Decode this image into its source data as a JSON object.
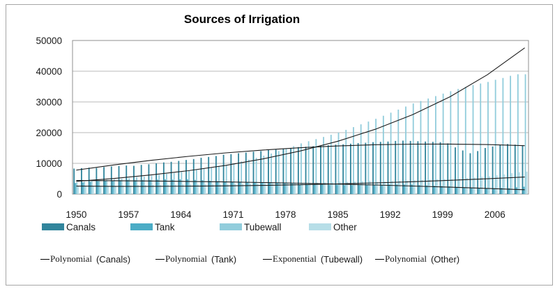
{
  "chart_data": {
    "type": "bar",
    "title": "Sources of Irrigation",
    "x": [
      1950,
      1951,
      1952,
      1953,
      1954,
      1955,
      1956,
      1957,
      1958,
      1959,
      1960,
      1961,
      1962,
      1963,
      1964,
      1965,
      1966,
      1967,
      1968,
      1969,
      1970,
      1971,
      1972,
      1973,
      1974,
      1975,
      1976,
      1977,
      1978,
      1979,
      1980,
      1981,
      1982,
      1983,
      1984,
      1985,
      1986,
      1987,
      1988,
      1989,
      1990,
      1991,
      1992,
      1993,
      1994,
      1995,
      1996,
      1997,
      1998,
      1999,
      2000,
      2001,
      2002,
      2003,
      2004,
      2005,
      2006,
      2007,
      2008,
      2009,
      2010
    ],
    "x_tick_labels": [
      "1950",
      "1957",
      "1964",
      "1971",
      "1978",
      "1985",
      "1992",
      "1999",
      "2006"
    ],
    "ylim": [
      0,
      50000
    ],
    "y_ticks": [
      0,
      10000,
      20000,
      30000,
      40000,
      50000
    ],
    "grid": true,
    "legend_position": "bottom",
    "series": [
      {
        "name": "Canals",
        "color": "#31859c",
        "values": [
          8300,
          8450,
          8600,
          8500,
          8800,
          9000,
          9150,
          9300,
          9200,
          9500,
          9700,
          10000,
          10300,
          10500,
          10800,
          11100,
          11400,
          11800,
          12100,
          12400,
          12800,
          13000,
          13300,
          13500,
          13800,
          14000,
          14300,
          14500,
          14800,
          15000,
          15300,
          15400,
          15600,
          15700,
          15900,
          16100,
          16200,
          16400,
          16600,
          16700,
          16900,
          17000,
          17100,
          17300,
          17400,
          17300,
          17200,
          17100,
          17000,
          16900,
          16500,
          15200,
          14200,
          13300,
          14000,
          15000,
          15500,
          16000,
          16300,
          16100,
          15800
        ]
      },
      {
        "name": "Tank",
        "color": "#4bacc6",
        "values": [
          3600,
          3800,
          4000,
          4200,
          4300,
          4400,
          4500,
          4600,
          4500,
          4600,
          4600,
          4700,
          4800,
          4700,
          4800,
          4800,
          4600,
          4500,
          4300,
          4200,
          4100,
          4000,
          4000,
          3900,
          3900,
          3900,
          3800,
          3700,
          3500,
          3400,
          3200,
          3200,
          3100,
          3100,
          3000,
          3000,
          2900,
          2900,
          2900,
          2900,
          2900,
          3000,
          3100,
          3100,
          3100,
          3100,
          2900,
          2800,
          2700,
          2600,
          2500,
          2300,
          2100,
          1900,
          1800,
          1800,
          1900,
          2000,
          1900,
          2200,
          2400
        ]
      },
      {
        "name": "Tubewall",
        "color": "#92cddc",
        "values": [
          3800,
          4000,
          4200,
          4400,
          4600,
          4800,
          5000,
          5200,
          5500,
          5700,
          6000,
          6300,
          6600,
          6900,
          7200,
          7500,
          7900,
          8300,
          8700,
          9100,
          9500,
          10000,
          10600,
          11200,
          11800,
          12500,
          13200,
          14000,
          14800,
          15600,
          16500,
          17200,
          17900,
          18600,
          19300,
          20000,
          20900,
          21800,
          22700,
          23600,
          24500,
          25500,
          26500,
          27500,
          28500,
          29500,
          30300,
          31100,
          31900,
          32700,
          33500,
          34200,
          34900,
          35500,
          36000,
          36500,
          37200,
          37800,
          38500,
          39000,
          39000
        ]
      },
      {
        "name": "Other",
        "color": "#b7dee8",
        "values": [
          2500,
          2500,
          2600,
          2600,
          2700,
          2700,
          2800,
          2800,
          2900,
          2900,
          3000,
          3000,
          3100,
          3100,
          3200,
          3200,
          3200,
          3300,
          3300,
          3200,
          3200,
          3300,
          3300,
          3400,
          3400,
          3500,
          3500,
          3600,
          3600,
          3700,
          3500,
          3600,
          3700,
          3800,
          3900,
          4000,
          4000,
          4100,
          4200,
          4300,
          4000,
          4100,
          4200,
          4300,
          4400,
          4500,
          4600,
          4700,
          4800,
          4900,
          4800,
          5000,
          5200,
          5400,
          5600,
          5800,
          6100,
          6400,
          6800,
          7100,
          7300
        ]
      }
    ],
    "trendlines": [
      {
        "label_prefix": "Polynomial",
        "label_suffix": "(Canals)",
        "fit": "polynomial",
        "series": "Canals",
        "color": "#000000",
        "x": [
          1950,
          1955,
          1960,
          1965,
          1970,
          1975,
          1980,
          1985,
          1990,
          1995,
          2000,
          2005,
          2010
        ],
        "values": [
          7800,
          9480,
          10970,
          12280,
          13400,
          14340,
          15100,
          15670,
          16060,
          16260,
          16280,
          16110,
          15760
        ]
      },
      {
        "label_prefix": "Polynomial",
        "label_suffix": "(Tank)",
        "fit": "polynomial",
        "series": "Tank",
        "color": "#000000",
        "x": [
          1950,
          1955,
          1960,
          1965,
          1970,
          1975,
          1980,
          1985,
          1990,
          1995,
          2000,
          2005,
          2010
        ],
        "values": [
          4400,
          4340,
          4250,
          4120,
          3960,
          3760,
          3530,
          3260,
          2960,
          2620,
          2250,
          1840,
          1400
        ]
      },
      {
        "label_prefix": "Exponential",
        "label_suffix": "(Tubewall)",
        "fit": "exponential",
        "series": "Tubewall",
        "color": "#000000",
        "x": [
          1950,
          1955,
          1960,
          1965,
          1970,
          1975,
          1980,
          1985,
          1990,
          1995,
          2000,
          2005,
          2010
        ],
        "values": [
          4140,
          5070,
          6220,
          7620,
          9340,
          11450,
          14040,
          17210,
          21090,
          25850,
          31680,
          38830,
          47590
        ]
      },
      {
        "label_prefix": "Polynomial",
        "label_suffix": "(Other)",
        "fit": "polynomial",
        "series": "Other",
        "color": "#000000",
        "x": [
          1950,
          1955,
          1960,
          1965,
          1970,
          1975,
          1980,
          1985,
          1990,
          1995,
          2000,
          2005,
          2010
        ],
        "values": [
          2600,
          2530,
          2520,
          2560,
          2660,
          2820,
          3040,
          3310,
          3640,
          4030,
          4480,
          4980,
          5540
        ]
      }
    ],
    "axis_colors": {
      "gridline": "#b8b8b8",
      "plot_border": "#8f8f8f",
      "trendline": "#1a1a1a"
    }
  }
}
